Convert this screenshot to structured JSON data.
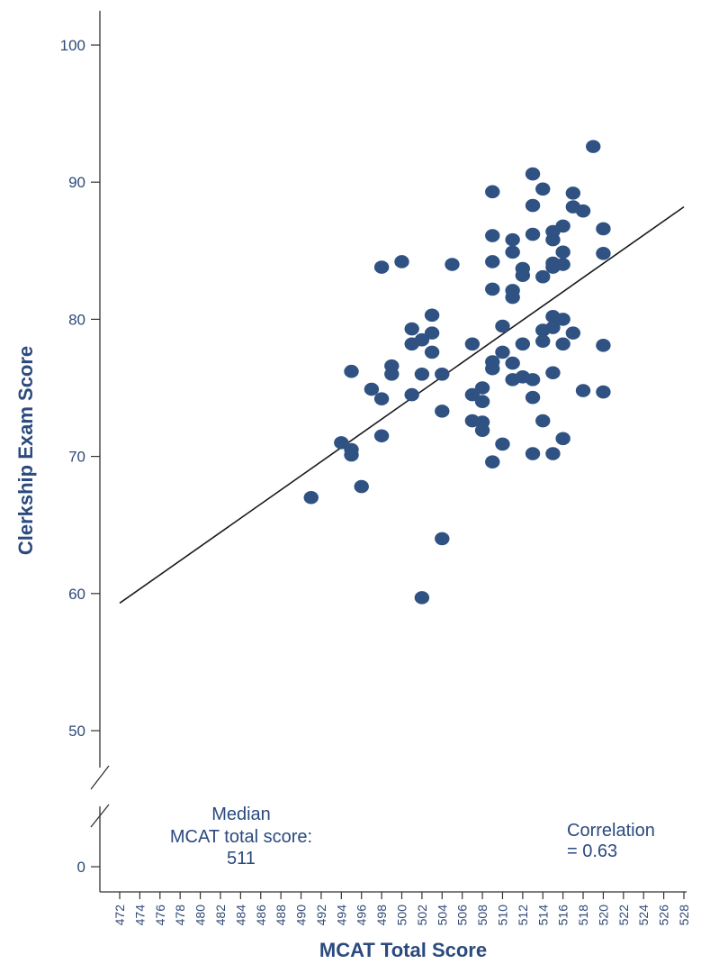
{
  "chart_data": {
    "type": "scatter",
    "xlabel": "MCAT Total Score",
    "ylabel": "Clerkship Exam Score",
    "xlim": [
      472,
      528
    ],
    "x_ticks": [
      472,
      474,
      476,
      478,
      480,
      482,
      484,
      486,
      488,
      490,
      492,
      494,
      496,
      498,
      500,
      502,
      504,
      506,
      508,
      510,
      512,
      514,
      516,
      518,
      520,
      522,
      524,
      526,
      528
    ],
    "y_ticks": [
      0,
      50,
      60,
      70,
      80,
      90,
      100
    ],
    "y_axis_break": [
      0,
      50
    ],
    "grid": false,
    "fit_line": {
      "x": [
        472,
        528
      ],
      "y": [
        59.3,
        88.2
      ]
    },
    "annotations": {
      "median": [
        "Median",
        "MCAT total score:",
        "511"
      ],
      "correlation": [
        "Correlation",
        "= 0.63"
      ]
    },
    "points": [
      [
        491,
        67.0
      ],
      [
        494,
        71.0
      ],
      [
        495,
        70.5
      ],
      [
        495,
        70.1
      ],
      [
        495,
        76.2
      ],
      [
        496,
        67.8
      ],
      [
        497,
        74.9
      ],
      [
        498,
        74.2
      ],
      [
        498,
        71.5
      ],
      [
        498,
        83.8
      ],
      [
        499,
        76.0
      ],
      [
        499,
        76.6
      ],
      [
        500,
        84.2
      ],
      [
        501,
        79.3
      ],
      [
        501,
        78.2
      ],
      [
        501,
        74.5
      ],
      [
        502,
        78.5
      ],
      [
        502,
        76.0
      ],
      [
        502,
        59.7
      ],
      [
        503,
        80.3
      ],
      [
        503,
        79.0
      ],
      [
        503,
        77.6
      ],
      [
        504,
        76.0
      ],
      [
        504,
        73.3
      ],
      [
        504,
        64.0
      ],
      [
        505,
        84.0
      ],
      [
        507,
        78.2
      ],
      [
        507,
        74.5
      ],
      [
        507,
        72.6
      ],
      [
        508,
        75.0
      ],
      [
        508,
        74.0
      ],
      [
        508,
        72.5
      ],
      [
        508,
        71.9
      ],
      [
        509,
        89.3
      ],
      [
        509,
        86.1
      ],
      [
        509,
        84.2
      ],
      [
        509,
        82.2
      ],
      [
        509,
        76.9
      ],
      [
        509,
        76.4
      ],
      [
        509,
        69.6
      ],
      [
        510,
        79.5
      ],
      [
        510,
        77.6
      ],
      [
        510,
        70.9
      ],
      [
        511,
        85.8
      ],
      [
        511,
        84.9
      ],
      [
        511,
        82.1
      ],
      [
        511,
        81.6
      ],
      [
        511,
        76.8
      ],
      [
        511,
        75.6
      ],
      [
        512,
        83.7
      ],
      [
        512,
        83.2
      ],
      [
        512,
        78.2
      ],
      [
        512,
        75.8
      ],
      [
        513,
        90.6
      ],
      [
        513,
        88.3
      ],
      [
        513,
        86.2
      ],
      [
        513,
        75.6
      ],
      [
        513,
        74.3
      ],
      [
        513,
        70.2
      ],
      [
        514,
        89.5
      ],
      [
        514,
        83.1
      ],
      [
        514,
        79.2
      ],
      [
        514,
        78.4
      ],
      [
        514,
        72.6
      ],
      [
        515,
        86.4
      ],
      [
        515,
        85.8
      ],
      [
        515,
        84.1
      ],
      [
        515,
        83.8
      ],
      [
        515,
        80.2
      ],
      [
        515,
        79.4
      ],
      [
        515,
        76.1
      ],
      [
        515,
        70.2
      ],
      [
        516,
        86.8
      ],
      [
        516,
        84.9
      ],
      [
        516,
        84.0
      ],
      [
        516,
        80.0
      ],
      [
        516,
        78.2
      ],
      [
        516,
        71.3
      ],
      [
        517,
        89.2
      ],
      [
        517,
        88.2
      ],
      [
        517,
        79.0
      ],
      [
        518,
        87.9
      ],
      [
        518,
        74.8
      ],
      [
        519,
        92.6
      ],
      [
        520,
        86.6
      ],
      [
        520,
        84.8
      ],
      [
        520,
        78.1
      ],
      [
        520,
        74.7
      ]
    ]
  }
}
